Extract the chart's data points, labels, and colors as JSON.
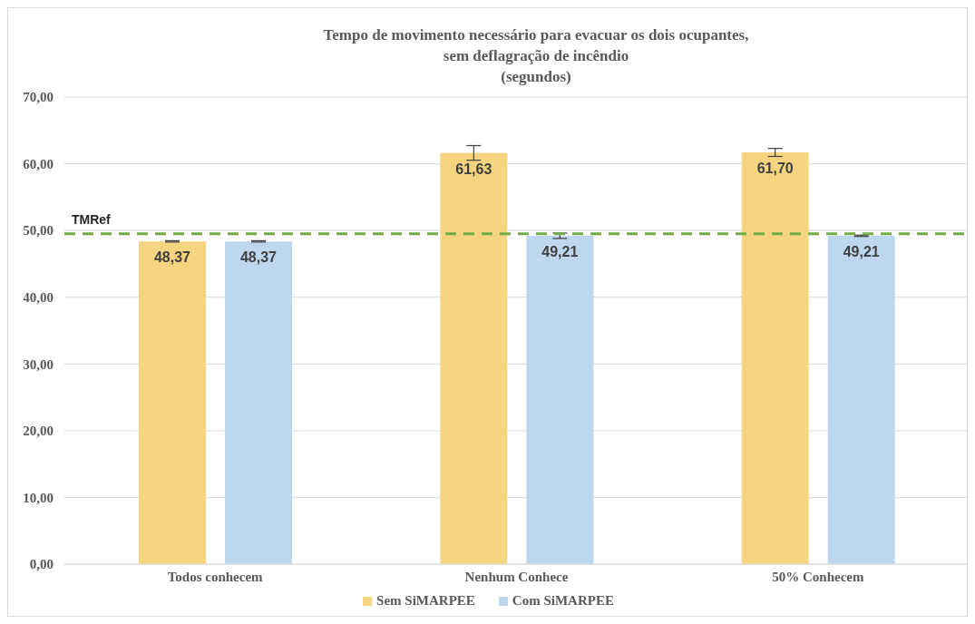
{
  "chart_data": {
    "type": "bar",
    "title": "Tempo de movimento necessário para evacuar os dois ocupantes,\nsem deflagração de incêndio",
    "subtitle": "(segundos)",
    "categories": [
      "Todos conhecem",
      "Nenhum Conhece",
      "50% Conhecem"
    ],
    "series": [
      {
        "name": "Sem SiMARPEE",
        "color": "#f6d580",
        "values": [
          48.37,
          61.63,
          61.7
        ],
        "errors": [
          0.1,
          1.1,
          0.6
        ],
        "value_labels": [
          "48,37",
          "61,63",
          "61,70"
        ]
      },
      {
        "name": "Com SiMARPEE",
        "color": "#bdd7ee",
        "values": [
          48.37,
          49.21,
          49.21
        ],
        "errors": [
          0.1,
          0.4,
          0.1
        ],
        "value_labels": [
          "48,37",
          "49,21",
          "49,21"
        ]
      }
    ],
    "ylim": [
      0,
      70
    ],
    "yticks": [
      {
        "value": 0,
        "label": "0,00"
      },
      {
        "value": 10,
        "label": "10,00"
      },
      {
        "value": 20,
        "label": "20,00"
      },
      {
        "value": 30,
        "label": "30,00"
      },
      {
        "value": 40,
        "label": "40,00"
      },
      {
        "value": 50,
        "label": "50,00"
      },
      {
        "value": 60,
        "label": "60,00"
      },
      {
        "value": 70,
        "label": "70,00"
      }
    ],
    "grid": "y",
    "legend": "bottom",
    "ref_lines": [
      {
        "axis": "y",
        "value": 49.5,
        "label": "TMRef",
        "color": "#70ad47",
        "line_style": "dashed"
      }
    ]
  }
}
